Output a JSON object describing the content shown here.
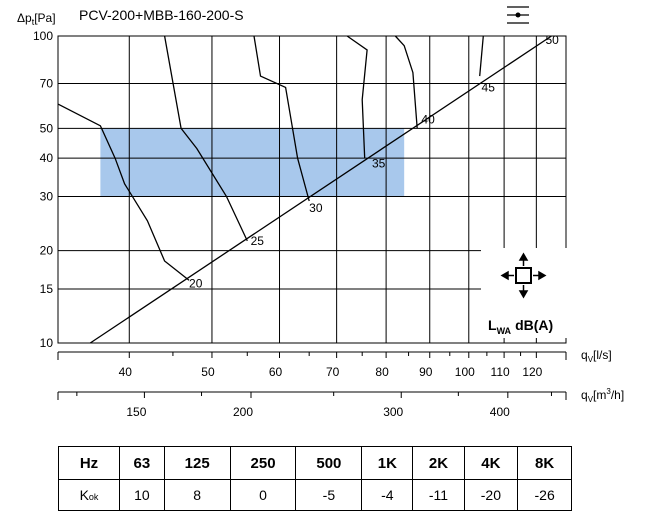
{
  "chart_data": {
    "type": "line",
    "title": "PCV-200+MBB-160-200-S",
    "ylabel_main": "Δp",
    "ylabel_sub": "t",
    "ylabel_unit": "[Pa]",
    "xlabel_ls_main": "q",
    "xlabel_ls_sub": "V",
    "xlabel_ls_unit": "[l/s]",
    "xlabel_m3h_main": "q",
    "xlabel_m3h_sub": "V",
    "xlabel_m3h_unit": "[m",
    "xlabel_m3h_exp": "3",
    "xlabel_m3h_tail": "/h]",
    "y_ticks": [
      10,
      15,
      20,
      30,
      40,
      50,
      70,
      100
    ],
    "x_ticks_ls": [
      40,
      50,
      60,
      70,
      80,
      90,
      100,
      110,
      120
    ],
    "x_ticks_m3h": [
      150,
      200,
      300,
      400
    ],
    "y_scale": "log",
    "x_scale": "log",
    "ylim": [
      10,
      100
    ],
    "xlim_ls": [
      33,
      130
    ],
    "lwa_main": "L",
    "lwa_sub": "WA",
    "lwa_unit": "dB(A)",
    "operating_region": {
      "ls": [
        37,
        84
      ],
      "pa": [
        30,
        50
      ],
      "color": "#a8c8ec"
    },
    "diagonal": {
      "ls": [
        36,
        125
      ],
      "pa": [
        10,
        100
      ]
    },
    "isolines": [
      {
        "label": "20",
        "points": [
          [
            33,
            60
          ],
          [
            37,
            51
          ],
          [
            38.5,
            40
          ],
          [
            39.5,
            33
          ],
          [
            42,
            25
          ],
          [
            44,
            18.5
          ],
          [
            47,
            16
          ]
        ]
      },
      {
        "label": "25",
        "points": [
          [
            44,
            100
          ],
          [
            46,
            50
          ],
          [
            48,
            43
          ],
          [
            52,
            30
          ],
          [
            55,
            21.5
          ]
        ]
      },
      {
        "label": "30",
        "points": [
          [
            56,
            100
          ],
          [
            57,
            74
          ],
          [
            61,
            68
          ],
          [
            63,
            40
          ],
          [
            65,
            29
          ]
        ]
      },
      {
        "label": "35",
        "points": [
          [
            72,
            100
          ],
          [
            76,
            90
          ],
          [
            75,
            62
          ],
          [
            75.5,
            40
          ]
        ]
      },
      {
        "label": "40",
        "points": [
          [
            82,
            100
          ],
          [
            84,
            93
          ],
          [
            86,
            76
          ],
          [
            87,
            50
          ]
        ]
      },
      {
        "label": "45",
        "points": [
          [
            104,
            100
          ],
          [
            103,
            74
          ]
        ]
      }
    ],
    "isoline_labels": [
      {
        "text": "20",
        "ls": 47,
        "pa": 15.6
      },
      {
        "text": "25",
        "ls": 55.5,
        "pa": 21.5
      },
      {
        "text": "30",
        "ls": 65,
        "pa": 27.5
      },
      {
        "text": "35",
        "ls": 77,
        "pa": 38.5
      },
      {
        "text": "40",
        "ls": 88,
        "pa": 53.5
      },
      {
        "text": "45",
        "ls": 103.5,
        "pa": 68
      },
      {
        "text": "50",
        "ls": 123,
        "pa": 97
      }
    ]
  },
  "kok_table": {
    "hz_label": "Hz",
    "frequencies": [
      "63",
      "125",
      "250",
      "500",
      "1K",
      "2K",
      "4K",
      "8K"
    ],
    "row_main": "K",
    "row_sub": "ok",
    "values": [
      "10",
      "8",
      "0",
      "-5",
      "-4",
      "-11",
      "-20",
      "-26"
    ]
  },
  "colors": {
    "region": "#a8c8ec",
    "grid": "#000000"
  }
}
